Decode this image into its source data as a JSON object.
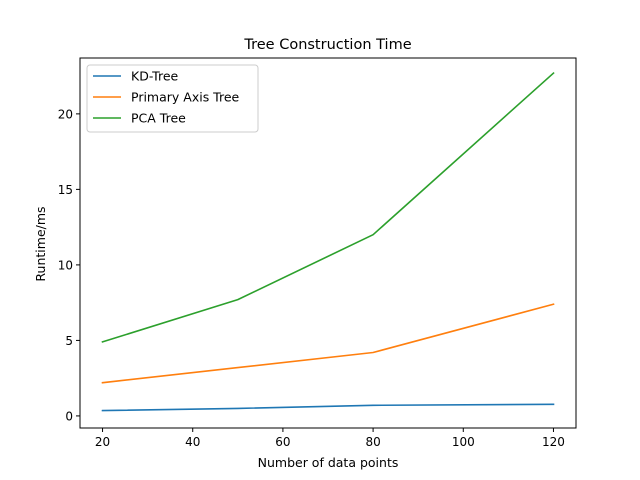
{
  "chart_data": {
    "type": "line",
    "title": "Tree Construction Time",
    "xlabel": "Number of data points",
    "ylabel": "Runtime/ms",
    "x": [
      20,
      50,
      80,
      120
    ],
    "xlim": [
      15,
      125
    ],
    "ylim": [
      -0.8,
      23.7
    ],
    "xticks": [
      20,
      40,
      60,
      80,
      100,
      120
    ],
    "yticks": [
      0,
      5,
      10,
      15,
      20
    ],
    "grid": false,
    "legend_position": "upper-left",
    "series": [
      {
        "name": "KD-Tree",
        "color": "#1f77b4",
        "values": [
          0.35,
          0.5,
          0.7,
          0.77
        ]
      },
      {
        "name": "Primary Axis Tree",
        "color": "#ff7f0e",
        "values": [
          2.2,
          3.2,
          4.2,
          7.4
        ]
      },
      {
        "name": "PCA Tree",
        "color": "#2ca02c",
        "values": [
          4.9,
          7.7,
          12.0,
          22.7
        ]
      }
    ]
  }
}
